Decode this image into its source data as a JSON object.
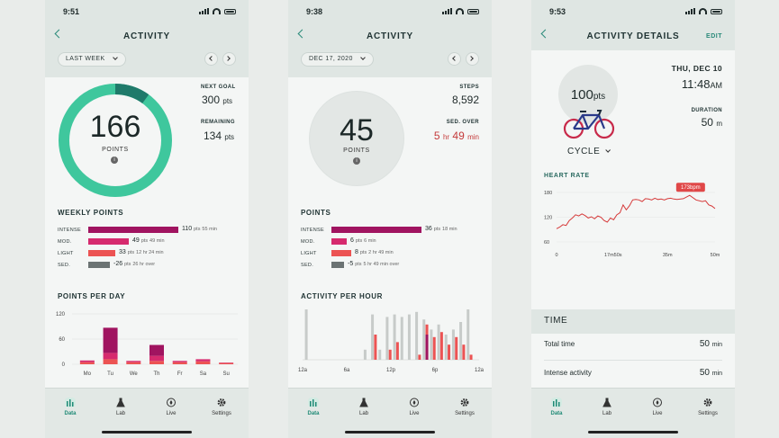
{
  "colors": {
    "teal": "#3fc79d",
    "darkteal": "#1f7a6a",
    "magenta": "#a01460",
    "pink": "#d62a6e",
    "coral": "#ec5353",
    "gray": "#6b7373",
    "red": "#c43a3a"
  },
  "screen1": {
    "time": "9:51",
    "title": "ACTIVITY",
    "period": "LAST WEEK",
    "points": "166",
    "points_label": "POINTS",
    "ring_progress": 0.553,
    "next_goal_label": "NEXT GOAL",
    "next_goal_value": "300",
    "next_goal_unit": "pts",
    "remaining_label": "REMAINING",
    "remaining_value": "134",
    "remaining_unit": "pts",
    "weekly_title": "WEEKLY POINTS",
    "rows": [
      {
        "label": "INTENSE",
        "value": "110",
        "unit": "pts",
        "dur": "55",
        "dur_unit": "min",
        "color": "#a01460",
        "frac": 1.0
      },
      {
        "label": "MOD.",
        "value": "49",
        "unit": "pts",
        "dur": "49",
        "dur_unit": "min",
        "color": "#d62a6e",
        "frac": 0.445
      },
      {
        "label": "LIGHT",
        "value": "33",
        "unit": "pts",
        "dur": "12 hr 24 min",
        "dur_unit": "",
        "color": "#ec5353",
        "frac": 0.3
      },
      {
        "label": "SED.",
        "value": "-26",
        "unit": "pts",
        "dur": "26 hr over",
        "dur_unit": "",
        "color": "#6b7373",
        "frac": 0.236
      }
    ],
    "perday_title": "POINTS PER DAY",
    "chart_data": {
      "type": "bar",
      "title": "POINTS PER DAY",
      "categories": [
        "Mo",
        "Tu",
        "We",
        "Th",
        "Fr",
        "Sa",
        "Su"
      ],
      "yticks": [
        "120",
        "60",
        "0"
      ],
      "ylim": [
        0,
        120
      ],
      "series": [
        {
          "name": "Intense",
          "values": [
            0,
            60,
            0,
            26,
            0,
            0,
            0
          ]
        },
        {
          "name": "Moderate",
          "values": [
            4,
            15,
            3,
            12,
            3,
            5,
            1
          ]
        },
        {
          "name": "Light",
          "values": [
            5,
            12,
            5,
            8,
            5,
            7,
            3
          ]
        }
      ]
    }
  },
  "screen2": {
    "time": "9:38",
    "title": "ACTIVITY",
    "date": "DEC 17, 2020",
    "points": "45",
    "points_label": "POINTS",
    "steps_label": "STEPS",
    "steps_value": "8,592",
    "sed_label": "SED. OVER",
    "sed_value_hr": "5",
    "sed_value_min": "49",
    "sed_hr_unit": "hr",
    "sed_min_unit": "min",
    "points_title": "POINTS",
    "rows": [
      {
        "label": "INTENSE",
        "value": "36",
        "unit": "pts",
        "dur": "18",
        "dur_unit": "min",
        "color": "#a01460",
        "frac": 1.0
      },
      {
        "label": "MOD.",
        "value": "6",
        "unit": "pts",
        "dur": "6",
        "dur_unit": "min",
        "color": "#d62a6e",
        "frac": 0.17
      },
      {
        "label": "LIGHT",
        "value": "8",
        "unit": "pts",
        "dur": "2 hr 49 min",
        "dur_unit": "",
        "color": "#ec5353",
        "frac": 0.22
      },
      {
        "label": "SED.",
        "value": "-5",
        "unit": "pts",
        "dur": "5 hr 49 min over",
        "dur_unit": "",
        "color": "#6b7373",
        "frac": 0.14
      }
    ],
    "perhour_title": "ACTIVITY PER HOUR",
    "chart_data": {
      "type": "bar",
      "title": "ACTIVITY PER HOUR",
      "categories": [
        "0",
        "1",
        "2",
        "3",
        "4",
        "5",
        "6",
        "7",
        "8",
        "9",
        "10",
        "11",
        "12",
        "13",
        "14",
        "15",
        "16",
        "17",
        "18",
        "19",
        "20",
        "21",
        "22",
        "23"
      ],
      "xticks": [
        "12a",
        "6a",
        "12p",
        "6p",
        "12a"
      ],
      "series": [
        {
          "name": "Inactive",
          "values": [
            1.0,
            0,
            0,
            0,
            0,
            0,
            0,
            0,
            0.2,
            0.9,
            0.2,
            0.85,
            0.9,
            0.85,
            0.9,
            0.95,
            0.8,
            0.6,
            0.7,
            0.5,
            0.6,
            0.75,
            1.0,
            0
          ]
        },
        {
          "name": "Light",
          "values": [
            0,
            0,
            0,
            0,
            0,
            0,
            0,
            0,
            0,
            0.5,
            0,
            0.2,
            0.35,
            0,
            0,
            0.1,
            0.7,
            0.45,
            0.55,
            0.3,
            0.45,
            0.3,
            0.1,
            0
          ]
        },
        {
          "name": "Intense",
          "values": [
            0,
            0,
            0,
            0,
            0,
            0,
            0,
            0,
            0,
            0,
            0,
            0,
            0,
            0,
            0,
            0,
            0.5,
            0,
            0,
            0,
            0,
            0,
            0,
            0
          ]
        }
      ]
    }
  },
  "screen3": {
    "time": "9:53",
    "title": "ACTIVITY DETAILS",
    "edit": "EDIT",
    "points": "100",
    "points_unit": "pts",
    "activity": "CYCLE",
    "date": "THU, DEC 10",
    "clock": "11:48",
    "ampm": "AM",
    "duration_label": "DURATION",
    "duration_value": "50",
    "duration_unit": "m",
    "hr_title": "HEART RATE",
    "peak_badge": "173bpm",
    "chart_data": {
      "type": "line",
      "title": "HEART RATE",
      "yticks": [
        "180",
        "120",
        "60"
      ],
      "xticks": [
        "0",
        "17m50s",
        "35m",
        "50m"
      ],
      "ylim": [
        60,
        180
      ],
      "xlim": [
        0,
        50
      ],
      "x": [
        0,
        1,
        2,
        3,
        4,
        5,
        6,
        7,
        8,
        9,
        10,
        11,
        12,
        13,
        14,
        15,
        16,
        17,
        18,
        19,
        20,
        21,
        22,
        23,
        24,
        25,
        26,
        27,
        28,
        29,
        30,
        31,
        32,
        33,
        34,
        35,
        36,
        37,
        38,
        40,
        42,
        44,
        46,
        47,
        48,
        49,
        50
      ],
      "y": [
        92,
        96,
        102,
        100,
        112,
        118,
        126,
        123,
        128,
        124,
        118,
        121,
        116,
        123,
        120,
        112,
        108,
        118,
        114,
        126,
        131,
        150,
        138,
        148,
        162,
        163,
        162,
        158,
        165,
        164,
        162,
        166,
        163,
        164,
        162,
        165,
        166,
        164,
        163,
        165,
        173,
        162,
        158,
        160,
        150,
        147,
        141
      ]
    },
    "time_section": "TIME",
    "rows": [
      {
        "label": "Total time",
        "value": "50",
        "unit": "min"
      },
      {
        "label": "Intense activity",
        "value": "50",
        "unit": "min"
      }
    ]
  },
  "tabs": [
    {
      "label": "Data"
    },
    {
      "label": "Lab"
    },
    {
      "label": "Live"
    },
    {
      "label": "Settings"
    }
  ]
}
